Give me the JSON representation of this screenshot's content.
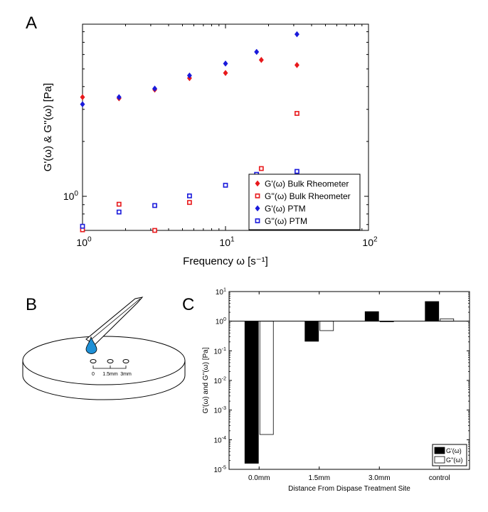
{
  "panel_labels": {
    "a": "A",
    "b": "B",
    "c": "C"
  },
  "colors": {
    "red": "#e8191c",
    "blue": "#1a1adb",
    "drop": "#1e90d6",
    "black": "#000000"
  },
  "schematic": {
    "marks": [
      "0",
      "1.5mm",
      "3mm"
    ]
  },
  "chart_data": [
    {
      "id": "A",
      "type": "scatter",
      "xscale": "log",
      "yscale": "log",
      "xlabel": "Frequency ω [s⁻¹]",
      "ylabel": "G'(ω) & G''(ω) [Pa]",
      "xlim": [
        1,
        100
      ],
      "ylim": [
        0.65,
        8.8
      ],
      "xticks": [
        {
          "value": 1,
          "base": "10",
          "exp": "0"
        },
        {
          "value": 10,
          "base": "10",
          "exp": "1"
        },
        {
          "value": 100,
          "base": "10",
          "exp": "2"
        }
      ],
      "yticks": [
        {
          "value": 1,
          "base": "10",
          "exp": "0"
        }
      ],
      "legend_position": "bottom-right",
      "series": [
        {
          "name": "G'(ω) Bulk Rheometer",
          "marker": "diamond-filled",
          "color": "#e8191c",
          "points": [
            [
              1.0,
              3.5
            ],
            [
              1.8,
              3.45
            ],
            [
              3.2,
              3.85
            ],
            [
              5.6,
              4.45
            ],
            [
              10.0,
              4.75
            ],
            [
              17.8,
              5.6
            ],
            [
              31.6,
              5.25
            ]
          ]
        },
        {
          "name": "G''(ω) Bulk Rheometer",
          "marker": "square-open",
          "color": "#e8191c",
          "points": [
            [
              1.0,
              0.655
            ],
            [
              1.8,
              0.905
            ],
            [
              3.2,
              0.65
            ],
            [
              5.6,
              0.925
            ],
            [
              17.8,
              1.42
            ],
            [
              31.6,
              2.85
            ]
          ]
        },
        {
          "name": "G'(ω) PTM",
          "marker": "diamond-filled",
          "color": "#1a1adb",
          "points": [
            [
              1.0,
              3.2
            ],
            [
              1.8,
              3.5
            ],
            [
              3.2,
              3.9
            ],
            [
              5.6,
              4.6
            ],
            [
              10.0,
              5.35
            ],
            [
              16.5,
              6.2
            ],
            [
              31.6,
              7.75
            ]
          ]
        },
        {
          "name": "G''(ω) PTM",
          "marker": "square-open",
          "color": "#1a1adb",
          "points": [
            [
              1.0,
              0.685
            ],
            [
              1.8,
              0.82
            ],
            [
              3.2,
              0.89
            ],
            [
              5.6,
              1.005
            ],
            [
              10.0,
              1.15
            ],
            [
              16.5,
              1.32
            ],
            [
              31.6,
              1.37
            ]
          ]
        }
      ]
    },
    {
      "id": "C",
      "type": "bar",
      "yscale": "log",
      "xlabel": "Distance From Dispase Treatment Site",
      "ylabel": "G'(ω) and G''(ω) [Pa]",
      "ylim": [
        1e-05,
        10
      ],
      "baseline": 1,
      "categories": [
        "0.0mm",
        "1.5mm",
        "3.0mm",
        "control"
      ],
      "yticks": [
        {
          "value": 10,
          "base": "10",
          "exp": "1"
        },
        {
          "value": 1,
          "base": "10",
          "exp": "0"
        },
        {
          "value": 0.1,
          "base": "10",
          "exp": "-1"
        },
        {
          "value": 0.01,
          "base": "10",
          "exp": "-2"
        },
        {
          "value": 0.001,
          "base": "10",
          "exp": "-3"
        },
        {
          "value": 0.0001,
          "base": "10",
          "exp": "-4"
        },
        {
          "value": 1e-05,
          "base": "10",
          "exp": "-5"
        }
      ],
      "legend_position": "bottom-right",
      "series": [
        {
          "name": "G'(ω)",
          "fill": "#000000",
          "values": [
            1.6e-05,
            0.21,
            2.1,
            4.6
          ]
        },
        {
          "name": "G''(ω)",
          "fill": "#ffffff",
          "values": [
            0.00015,
            0.48,
            0.97,
            1.2
          ]
        }
      ]
    }
  ]
}
